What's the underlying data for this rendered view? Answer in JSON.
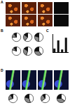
{
  "panel_labels": [
    "A",
    "B",
    "C",
    "D"
  ],
  "chart_data": [
    {
      "type": "pie",
      "values": [
        75,
        15,
        10
      ],
      "colors": [
        "#ffffff",
        "#888888",
        "#111111"
      ]
    },
    {
      "type": "pie",
      "values": [
        60,
        25,
        15
      ],
      "colors": [
        "#ffffff",
        "#888888",
        "#111111"
      ]
    },
    {
      "type": "pie",
      "values": [
        50,
        30,
        20
      ],
      "colors": [
        "#ffffff",
        "#888888",
        "#111111"
      ]
    },
    {
      "type": "pie",
      "values": [
        80,
        10,
        10
      ],
      "colors": [
        "#ffffff",
        "#888888",
        "#111111"
      ]
    },
    {
      "type": "pie",
      "values": [
        55,
        30,
        15
      ],
      "colors": [
        "#ffffff",
        "#888888",
        "#111111"
      ]
    },
    {
      "type": "pie",
      "values": [
        40,
        35,
        25
      ],
      "colors": [
        "#ffffff",
        "#888888",
        "#111111"
      ]
    },
    {
      "type": "bar",
      "categories": [
        null,
        null,
        null,
        null
      ],
      "values": [
        20,
        65,
        15,
        80
      ],
      "color": "#111111",
      "ylim": [
        0,
        100
      ],
      "tick_labels": false
    },
    {
      "type": "pie",
      "values": [
        70,
        20,
        10
      ],
      "colors": [
        "#ffffff",
        "#888888",
        "#111111"
      ]
    },
    {
      "type": "pie",
      "values": [
        45,
        35,
        20
      ],
      "colors": [
        "#ffffff",
        "#888888",
        "#111111"
      ]
    },
    {
      "type": "pie",
      "values": [
        65,
        25,
        10
      ],
      "colors": [
        "#ffffff",
        "#888888",
        "#111111"
      ]
    },
    {
      "type": "pie",
      "values": [
        35,
        40,
        25
      ],
      "colors": [
        "#ffffff",
        "#888888",
        "#111111"
      ]
    }
  ]
}
